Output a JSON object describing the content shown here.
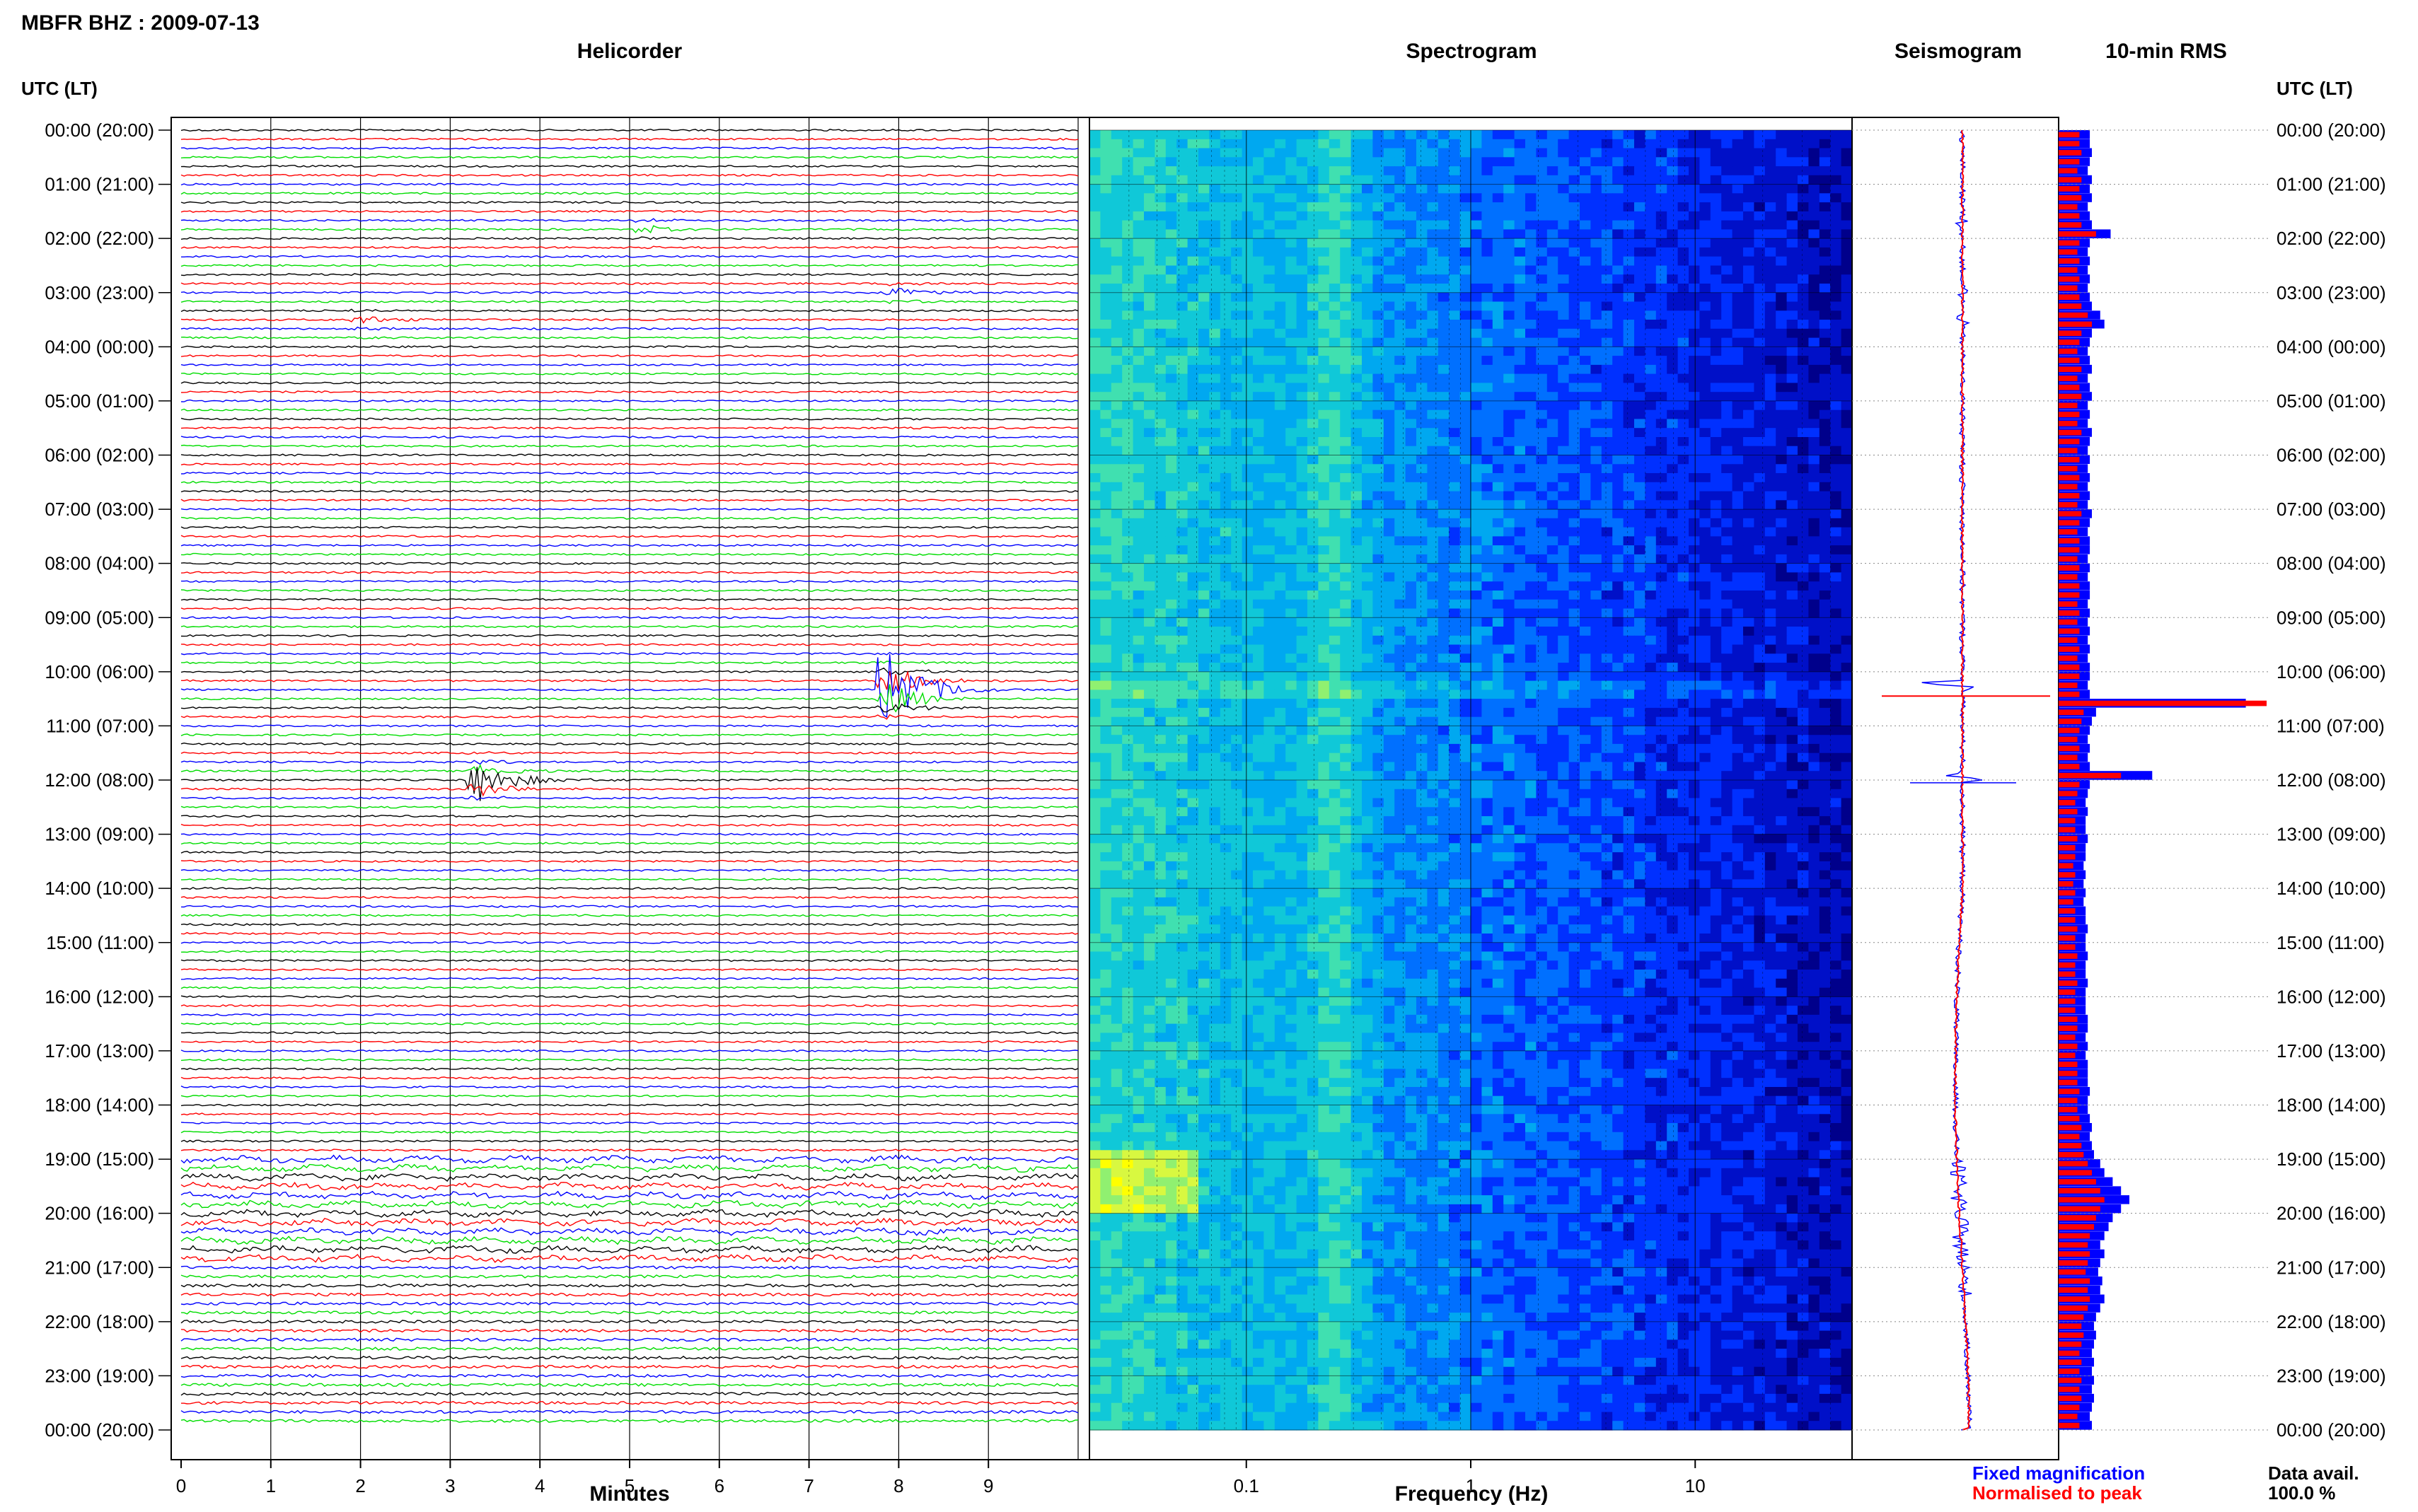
{
  "header": {
    "title": "MBFR BHZ : 2009-07-13"
  },
  "panels": {
    "helicorder": "Helicorder",
    "spectrogram": "Spectrogram",
    "seismogram": "Seismogram",
    "rms": "10-min RMS"
  },
  "axis": {
    "time_header_left": "UTC (LT)",
    "time_header_right": "UTC (LT)",
    "minutes_label": "Minutes",
    "frequency_label": "Frequency (Hz)"
  },
  "legend": {
    "fixed": "Fixed magnification",
    "normalised": "Normalised to peak",
    "fixed_color": "#0000ff",
    "normalised_color": "#ff0000"
  },
  "availability": {
    "label": "Data avail.",
    "value": "100.0 %"
  },
  "colors": {
    "trace_cycle": [
      "#000000",
      "#ff0000",
      "#0000ff",
      "#00dd00"
    ],
    "spectrogram_low": "#00008b",
    "spectrogram_high": "#ffff00"
  },
  "chart_data": {
    "type": "heatmap",
    "time_ticks": [
      "00:00 (20:00)",
      "01:00 (21:00)",
      "02:00 (22:00)",
      "03:00 (23:00)",
      "04:00 (00:00)",
      "05:00 (01:00)",
      "06:00 (02:00)",
      "07:00 (03:00)",
      "08:00 (04:00)",
      "09:00 (05:00)",
      "10:00 (06:00)",
      "11:00 (07:00)",
      "12:00 (08:00)",
      "13:00 (09:00)",
      "14:00 (10:00)",
      "15:00 (11:00)",
      "16:00 (12:00)",
      "17:00 (13:00)",
      "18:00 (14:00)",
      "19:00 (15:00)",
      "20:00 (16:00)",
      "21:00 (17:00)",
      "22:00 (18:00)",
      "23:00 (19:00)",
      "00:00 (20:00)"
    ],
    "minutes_ticks": [
      "0",
      "1",
      "2",
      "3",
      "4",
      "5",
      "6",
      "7",
      "8",
      "9"
    ],
    "minutes_range": [
      0,
      10
    ],
    "frequency_ticks": [
      "0.1",
      "1",
      "10"
    ],
    "frequency_range_hz": [
      0.02,
      50
    ],
    "frequency_scale": "log",
    "lines_per_hour": 6,
    "events": [
      {
        "hour": 10.25,
        "minute": 7.9,
        "relative_amplitude": 1.0,
        "color": "blue"
      },
      {
        "hour": 11.95,
        "minute": 3.35,
        "relative_amplitude": 0.45,
        "color": "black"
      },
      {
        "hour": 1.75,
        "minute": 5.2,
        "relative_amplitude": 0.1,
        "color": "blue"
      },
      {
        "hour": 3.5,
        "minute": 2.0,
        "relative_amplitude": 0.08,
        "color": "red"
      },
      {
        "hour": 3.0,
        "minute": 8.0,
        "relative_amplitude": 0.12,
        "color": "blue"
      }
    ],
    "rms_series": [
      {
        "name": "Fixed magnification",
        "values": [
          0.15,
          0.15,
          0.16,
          0.15,
          0.14,
          0.16,
          0.15,
          0.16,
          0.14,
          0.15,
          0.16,
          0.25,
          0.15,
          0.14,
          0.15,
          0.14,
          0.15,
          0.14,
          0.15,
          0.16,
          0.2,
          0.22,
          0.16,
          0.15,
          0.14,
          0.15,
          0.16,
          0.14,
          0.15,
          0.16,
          0.14,
          0.15,
          0.14,
          0.16,
          0.15,
          0.14,
          0.15,
          0.14,
          0.15,
          0.14,
          0.15,
          0.14,
          0.16,
          0.15,
          0.14,
          0.15,
          0.15,
          0.14,
          0.15,
          0.14,
          0.15,
          0.15,
          0.14,
          0.15,
          0.14,
          0.15,
          0.14,
          0.15,
          0.14,
          0.15,
          0.15,
          0.14,
          0.15,
          0.9,
          0.18,
          0.16,
          0.15,
          0.14,
          0.15,
          0.14,
          0.15,
          0.45,
          0.15,
          0.14,
          0.13,
          0.14,
          0.13,
          0.13,
          0.14,
          0.13,
          0.13,
          0.12,
          0.13,
          0.12,
          0.13,
          0.12,
          0.13,
          0.13,
          0.14,
          0.13,
          0.13,
          0.14,
          0.13,
          0.13,
          0.14,
          0.13,
          0.13,
          0.13,
          0.14,
          0.14,
          0.13,
          0.14,
          0.13,
          0.14,
          0.14,
          0.14,
          0.15,
          0.14,
          0.14,
          0.15,
          0.16,
          0.15,
          0.16,
          0.17,
          0.2,
          0.22,
          0.26,
          0.3,
          0.34,
          0.3,
          0.26,
          0.24,
          0.22,
          0.2,
          0.22,
          0.2,
          0.19,
          0.21,
          0.2,
          0.22,
          0.2,
          0.18,
          0.17,
          0.18,
          0.17,
          0.16,
          0.17,
          0.16,
          0.17,
          0.16,
          0.17,
          0.16,
          0.15,
          0.16
        ]
      },
      {
        "name": "Normalised to peak",
        "values": [
          0.1,
          0.1,
          0.11,
          0.1,
          0.09,
          0.11,
          0.1,
          0.11,
          0.09,
          0.1,
          0.11,
          0.18,
          0.1,
          0.09,
          0.1,
          0.09,
          0.1,
          0.09,
          0.1,
          0.11,
          0.14,
          0.16,
          0.11,
          0.1,
          0.09,
          0.1,
          0.11,
          0.09,
          0.1,
          0.11,
          0.09,
          0.1,
          0.09,
          0.11,
          0.1,
          0.09,
          0.1,
          0.09,
          0.1,
          0.09,
          0.1,
          0.09,
          0.11,
          0.1,
          0.09,
          0.1,
          0.1,
          0.09,
          0.1,
          0.09,
          0.1,
          0.1,
          0.09,
          0.1,
          0.09,
          0.1,
          0.09,
          0.1,
          0.09,
          0.1,
          0.1,
          0.09,
          0.1,
          1.0,
          0.12,
          0.11,
          0.1,
          0.09,
          0.1,
          0.09,
          0.1,
          0.3,
          0.1,
          0.09,
          0.08,
          0.09,
          0.08,
          0.08,
          0.09,
          0.08,
          0.08,
          0.07,
          0.08,
          0.07,
          0.08,
          0.07,
          0.08,
          0.08,
          0.09,
          0.08,
          0.08,
          0.09,
          0.08,
          0.08,
          0.09,
          0.08,
          0.08,
          0.08,
          0.09,
          0.09,
          0.08,
          0.09,
          0.08,
          0.09,
          0.09,
          0.09,
          0.1,
          0.09,
          0.09,
          0.1,
          0.11,
          0.1,
          0.11,
          0.12,
          0.14,
          0.16,
          0.18,
          0.2,
          0.22,
          0.2,
          0.18,
          0.17,
          0.15,
          0.14,
          0.15,
          0.14,
          0.13,
          0.15,
          0.14,
          0.15,
          0.14,
          0.12,
          0.11,
          0.12,
          0.11,
          0.1,
          0.11,
          0.1,
          0.11,
          0.1,
          0.11,
          0.1,
          0.09,
          0.1
        ]
      }
    ]
  }
}
